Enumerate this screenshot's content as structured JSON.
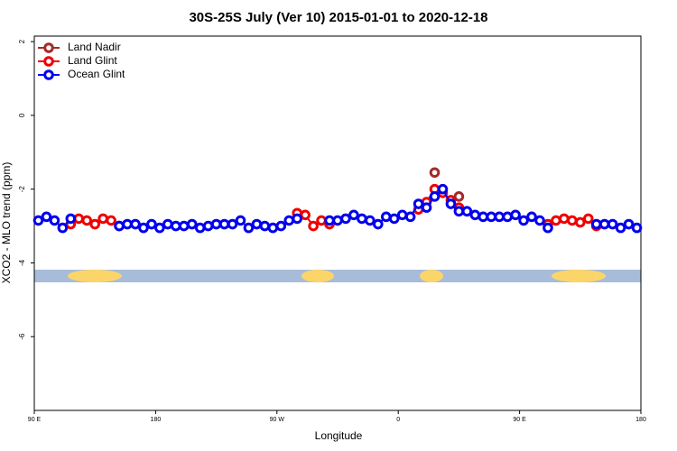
{
  "chart_data": {
    "type": "line",
    "title": "30S-25S July (Ver 10)   2015-01-01 to 2020-12-18",
    "x_label": "Longitude",
    "y_label": "XCO2 - MLO trend (ppm)",
    "xlim": [
      90,
      540
    ],
    "ylim": [
      -8,
      2.15
    ],
    "xticks": [
      {
        "value": 90,
        "label": "90 E"
      },
      {
        "value": 180,
        "label": "180"
      },
      {
        "value": 270,
        "label": "90 W"
      },
      {
        "value": 360,
        "label": "0"
      },
      {
        "value": 450,
        "label": "90 E"
      },
      {
        "value": 540,
        "label": "180"
      }
    ],
    "yticks": [
      -6,
      -4,
      -2,
      0,
      2
    ],
    "legend": "top-left",
    "x": [
      93,
      99,
      105,
      111,
      117,
      123,
      129,
      135,
      141,
      147,
      153,
      159,
      165,
      171,
      177,
      183,
      189,
      195,
      201,
      207,
      213,
      219,
      225,
      231,
      237,
      243,
      249,
      255,
      261,
      267,
      273,
      279,
      285,
      291,
      297,
      303,
      309,
      315,
      321,
      327,
      333,
      339,
      345,
      351,
      357,
      363,
      369,
      375,
      381,
      387,
      393,
      399,
      405,
      411,
      417,
      423,
      429,
      435,
      441,
      447,
      453,
      459,
      465,
      471,
      477,
      483,
      489,
      495,
      501,
      507,
      513,
      519,
      525,
      531,
      537
    ],
    "series": [
      {
        "name": "Land Nadir",
        "color": "#a52a2a",
        "values": [
          null,
          null,
          null,
          null,
          null,
          null,
          null,
          null,
          null,
          null,
          null,
          null,
          null,
          null,
          null,
          null,
          null,
          null,
          null,
          null,
          null,
          null,
          null,
          null,
          null,
          null,
          null,
          null,
          null,
          null,
          null,
          null,
          null,
          null,
          null,
          null,
          null,
          null,
          null,
          null,
          null,
          null,
          null,
          null,
          null,
          null,
          null,
          null,
          null,
          -1.55,
          null,
          null,
          -2.2,
          null,
          null,
          null,
          null,
          null,
          null,
          null,
          null,
          null,
          null,
          null,
          null,
          null,
          null,
          null,
          null,
          null,
          null,
          null,
          null,
          null,
          null
        ]
      },
      {
        "name": "Land Glint",
        "color": "#ee0000",
        "values": [
          null,
          null,
          null,
          null,
          -2.95,
          -2.8,
          -2.85,
          -2.95,
          -2.8,
          -2.85,
          -3.0,
          null,
          null,
          null,
          null,
          null,
          null,
          null,
          null,
          null,
          null,
          null,
          null,
          null,
          null,
          null,
          null,
          null,
          null,
          null,
          null,
          null,
          -2.65,
          -2.7,
          -3.0,
          -2.85,
          -2.95,
          null,
          null,
          null,
          null,
          null,
          null,
          null,
          null,
          null,
          null,
          -2.55,
          -2.35,
          -2.0,
          -2.1,
          -2.3,
          -2.5,
          null,
          null,
          null,
          null,
          null,
          null,
          null,
          null,
          null,
          null,
          -2.95,
          -2.85,
          -2.8,
          -2.85,
          -2.9,
          -2.8,
          -3.0,
          null,
          null,
          null,
          null,
          null
        ]
      },
      {
        "name": "Ocean Glint",
        "color": "#0000ee",
        "values": [
          -2.85,
          -2.75,
          -2.85,
          -3.05,
          -2.8,
          null,
          null,
          null,
          null,
          null,
          -3.0,
          -2.95,
          -2.95,
          -3.05,
          -2.95,
          -3.05,
          -2.95,
          -3.0,
          -3.0,
          -2.95,
          -3.05,
          -3.0,
          -2.95,
          -2.95,
          -2.95,
          -2.85,
          -3.05,
          -2.95,
          -3.0,
          -3.05,
          -3.0,
          -2.85,
          -2.8,
          null,
          null,
          null,
          -2.85,
          -2.85,
          -2.8,
          -2.7,
          -2.8,
          -2.85,
          -2.95,
          -2.75,
          -2.8,
          -2.7,
          -2.75,
          -2.4,
          -2.5,
          -2.2,
          -2.0,
          -2.4,
          -2.6,
          -2.6,
          -2.7,
          -2.75,
          -2.75,
          -2.75,
          -2.75,
          -2.7,
          -2.85,
          -2.75,
          -2.85,
          -3.05,
          null,
          null,
          null,
          null,
          null,
          -2.95,
          -2.95,
          -2.95,
          -3.05,
          -2.95,
          -3.05
        ]
      }
    ]
  }
}
